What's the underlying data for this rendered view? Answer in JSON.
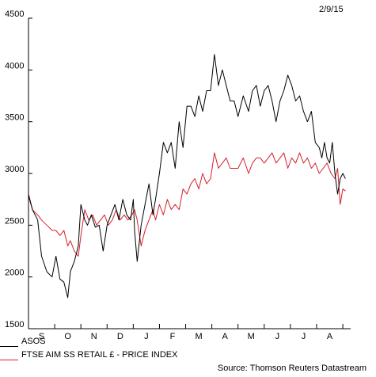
{
  "date_label": "2/9/15",
  "source_label": "Source: Thomson Reuters Datastream",
  "colors": {
    "asos": "#000000",
    "ftse": "#d4202a"
  },
  "chart_data": {
    "type": "line",
    "title": "",
    "xlabel": "",
    "ylabel": "",
    "y_ticks": [
      1500,
      2000,
      2500,
      3000,
      3500,
      4000,
      4500
    ],
    "ylim": [
      1500,
      4500
    ],
    "x_ticks": [
      "S",
      "O",
      "N",
      "D",
      "J",
      "F",
      "M",
      "A",
      "M",
      "J",
      "J",
      "A"
    ],
    "xlim": [
      0,
      12.3
    ],
    "grid": false,
    "legend_position": "bottom-left",
    "series": [
      {
        "name": "ASOS",
        "color": "#000000",
        "x": [
          0,
          0.15,
          0.35,
          0.5,
          0.7,
          0.9,
          1.05,
          1.2,
          1.35,
          1.5,
          1.6,
          1.75,
          1.9,
          2.0,
          2.15,
          2.25,
          2.4,
          2.55,
          2.7,
          2.85,
          3.0,
          3.15,
          3.3,
          3.45,
          3.6,
          3.75,
          3.9,
          4.0,
          4.05,
          4.15,
          4.3,
          4.45,
          4.6,
          4.75,
          4.85,
          5.0,
          5.15,
          5.3,
          5.45,
          5.6,
          5.75,
          5.9,
          6.05,
          6.2,
          6.35,
          6.5,
          6.65,
          6.8,
          6.95,
          7.1,
          7.25,
          7.4,
          7.55,
          7.7,
          7.85,
          8.0,
          8.2,
          8.4,
          8.55,
          8.7,
          8.85,
          9.0,
          9.15,
          9.3,
          9.45,
          9.6,
          9.75,
          9.9,
          10.05,
          10.2,
          10.35,
          10.5,
          10.65,
          10.8,
          10.95,
          11.1,
          11.2,
          11.3,
          11.4,
          11.5,
          11.6,
          11.7,
          11.8,
          11.9,
          12.0,
          12.1
        ],
        "y": [
          2800,
          2650,
          2550,
          2200,
          2050,
          2000,
          2200,
          1980,
          1950,
          1800,
          2050,
          2150,
          2300,
          2700,
          2550,
          2500,
          2600,
          2480,
          2500,
          2250,
          2500,
          2600,
          2700,
          2550,
          2750,
          2600,
          2550,
          2750,
          2450,
          2150,
          2500,
          2700,
          2900,
          2600,
          2750,
          3000,
          3300,
          3200,
          3300,
          3050,
          3500,
          3250,
          3650,
          3650,
          3550,
          3750,
          3600,
          3800,
          3800,
          4150,
          3850,
          4000,
          3850,
          3700,
          3700,
          3550,
          3750,
          3600,
          3800,
          3850,
          3650,
          3800,
          3850,
          3700,
          3500,
          3700,
          3800,
          3950,
          3850,
          3700,
          3750,
          3600,
          3500,
          3600,
          3300,
          3250,
          3150,
          3300,
          3150,
          3100,
          3300,
          3000,
          2800,
          2950,
          3000,
          2950
        ]
      },
      {
        "name": "FTSE AIM SS RETAIL £ - PRICE INDEX",
        "color": "#d4202a",
        "x": [
          0,
          0.15,
          0.35,
          0.5,
          0.7,
          0.9,
          1.05,
          1.2,
          1.35,
          1.5,
          1.6,
          1.75,
          1.9,
          2.0,
          2.15,
          2.3,
          2.45,
          2.6,
          2.75,
          2.9,
          3.05,
          3.2,
          3.35,
          3.5,
          3.65,
          3.8,
          3.95,
          4.05,
          4.15,
          4.3,
          4.45,
          4.6,
          4.75,
          4.85,
          5.0,
          5.15,
          5.3,
          5.45,
          5.6,
          5.75,
          5.9,
          6.05,
          6.2,
          6.35,
          6.5,
          6.65,
          6.8,
          6.95,
          7.1,
          7.25,
          7.4,
          7.55,
          7.7,
          7.85,
          8.0,
          8.2,
          8.4,
          8.55,
          8.7,
          8.85,
          9.0,
          9.15,
          9.3,
          9.45,
          9.6,
          9.75,
          9.9,
          10.05,
          10.2,
          10.35,
          10.5,
          10.65,
          10.8,
          10.95,
          11.1,
          11.25,
          11.4,
          11.55,
          11.7,
          11.8,
          11.9,
          12.0,
          12.1
        ],
        "y": [
          2780,
          2650,
          2600,
          2550,
          2500,
          2450,
          2450,
          2400,
          2450,
          2300,
          2350,
          2250,
          2200,
          2400,
          2650,
          2550,
          2600,
          2500,
          2550,
          2600,
          2500,
          2550,
          2650,
          2550,
          2600,
          2550,
          2600,
          2650,
          2550,
          2300,
          2450,
          2550,
          2650,
          2550,
          2700,
          2600,
          2750,
          2650,
          2700,
          2650,
          2850,
          2800,
          2900,
          2950,
          2850,
          3000,
          2900,
          2950,
          3200,
          3050,
          3100,
          3150,
          3050,
          3050,
          3050,
          3150,
          3000,
          3100,
          3150,
          3150,
          3100,
          3150,
          3200,
          3100,
          3150,
          3200,
          3050,
          3150,
          3100,
          3200,
          3100,
          3150,
          3050,
          3100,
          3000,
          3050,
          3100,
          3000,
          2950,
          3050,
          2700,
          2850,
          2830
        ]
      }
    ]
  }
}
